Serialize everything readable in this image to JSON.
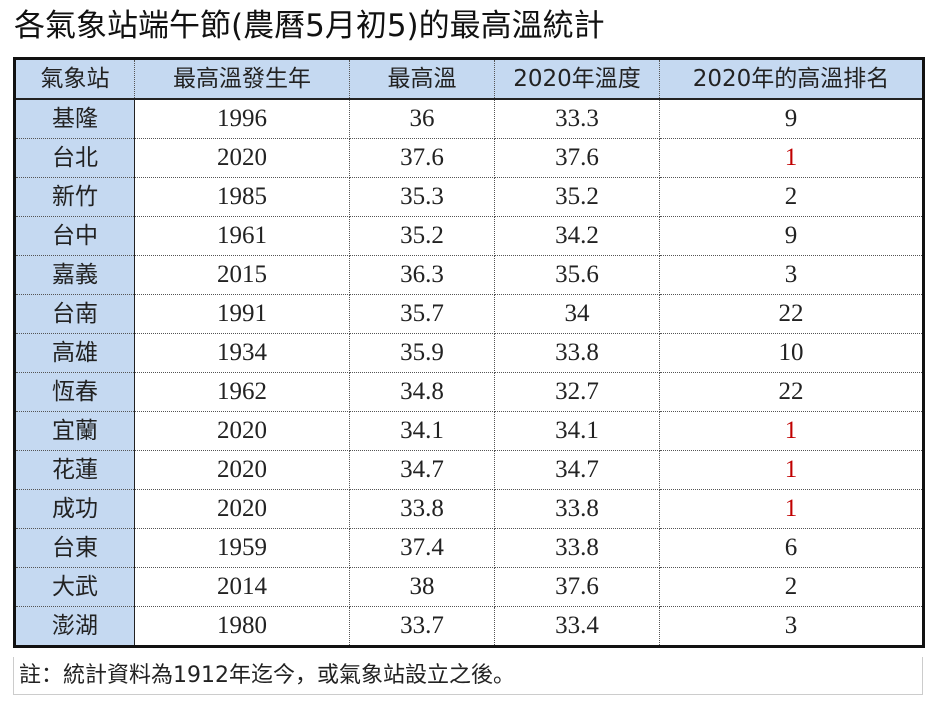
{
  "title": "各氣象站端午節(農曆5月初5)的最高溫統計",
  "table": {
    "headers": [
      "氣象站",
      "最高溫發生年",
      "最高溫",
      "2020年溫度",
      "2020年的高溫排名"
    ],
    "rows": [
      [
        "基隆",
        "1996",
        "36",
        "33.3",
        "9"
      ],
      [
        "台北",
        "2020",
        "37.6",
        "37.6",
        "1"
      ],
      [
        "新竹",
        "1985",
        "35.3",
        "35.2",
        "2"
      ],
      [
        "台中",
        "1961",
        "35.2",
        "34.2",
        "9"
      ],
      [
        "嘉義",
        "2015",
        "36.3",
        "35.6",
        "3"
      ],
      [
        "台南",
        "1991",
        "35.7",
        "34",
        "22"
      ],
      [
        "高雄",
        "1934",
        "35.9",
        "33.8",
        "10"
      ],
      [
        "恆春",
        "1962",
        "34.8",
        "32.7",
        "22"
      ],
      [
        "宜蘭",
        "2020",
        "34.1",
        "34.1",
        "1"
      ],
      [
        "花蓮",
        "2020",
        "34.7",
        "34.7",
        "1"
      ],
      [
        "成功",
        "2020",
        "33.8",
        "33.8",
        "1"
      ],
      [
        "台東",
        "1959",
        "37.4",
        "33.8",
        "6"
      ],
      [
        "大武",
        "2014",
        "38",
        "37.6",
        "2"
      ],
      [
        "澎湖",
        "1980",
        "33.7",
        "33.4",
        "3"
      ]
    ]
  },
  "note": "註：統計資料為1912年迄今，或氣象站設立之後。",
  "colors": {
    "header_bg": "#c5d9f1",
    "rank_one": "#c00000"
  }
}
